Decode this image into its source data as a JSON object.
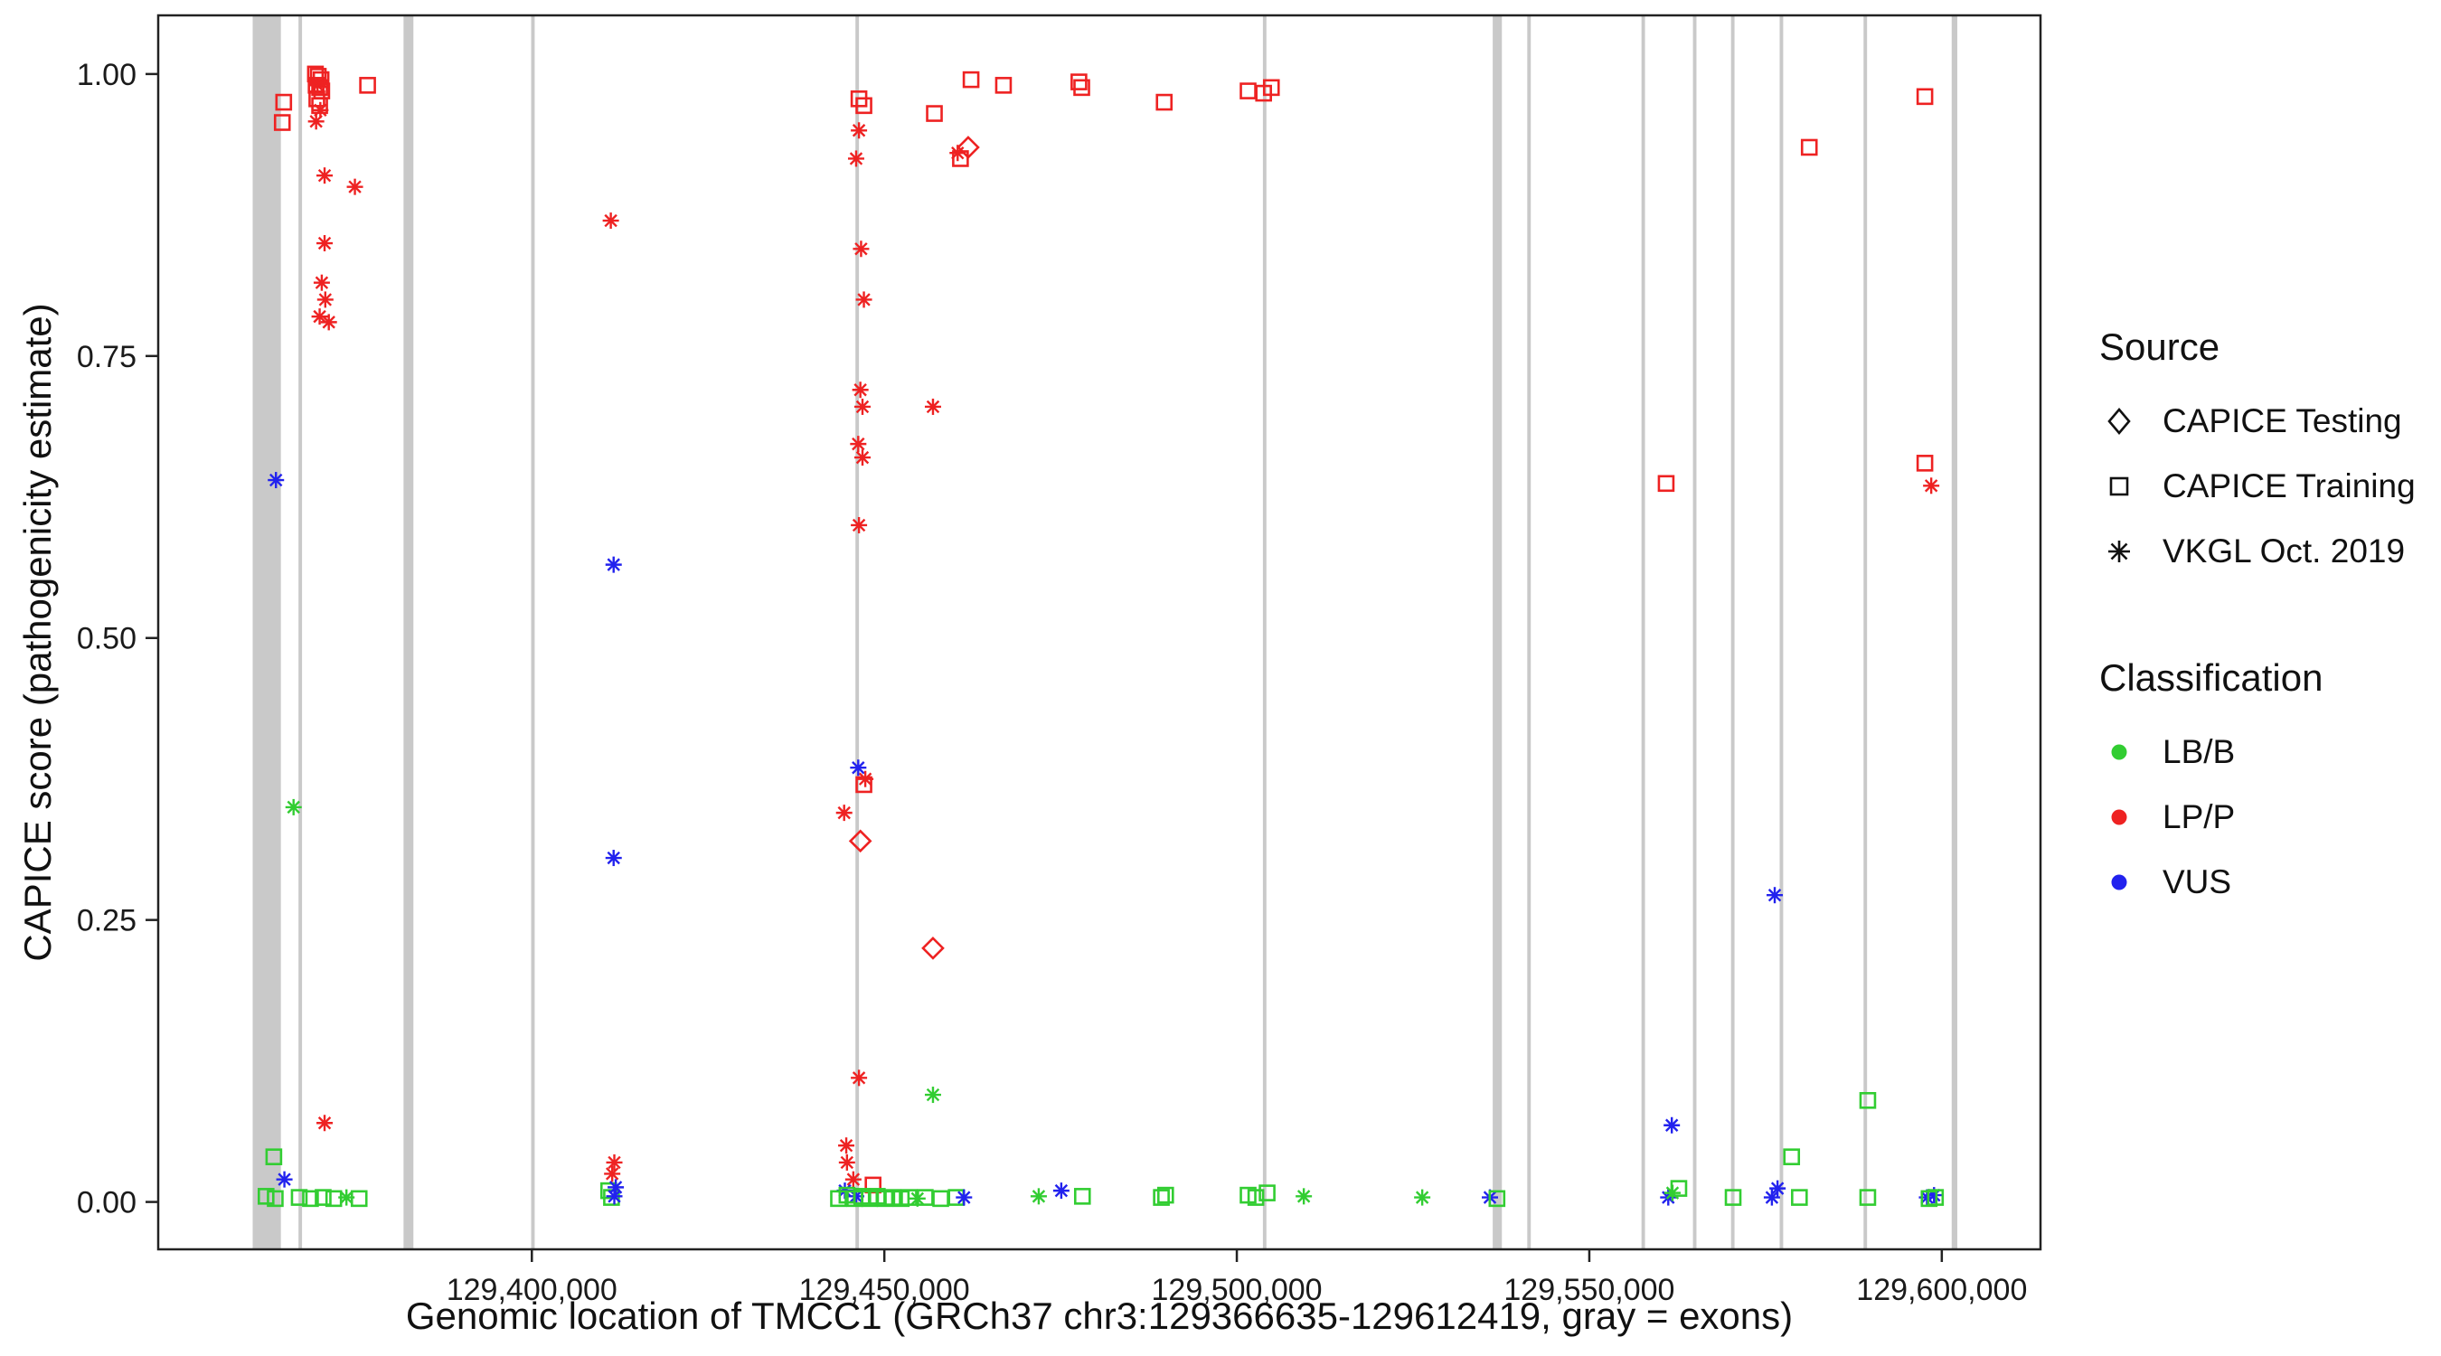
{
  "figure": {
    "background": "#ffffff",
    "panel_border_color": "#222222"
  },
  "legend": {
    "source": {
      "title": "Source",
      "items": [
        {
          "label": "CAPICE Testing",
          "shape": "diamond"
        },
        {
          "label": "CAPICE Training",
          "shape": "square"
        },
        {
          "label": "VKGL Oct. 2019",
          "shape": "asterisk"
        }
      ]
    },
    "classification": {
      "title": "Classification",
      "items": [
        {
          "label": "LB/B",
          "color": "#32cd32"
        },
        {
          "label": "LP/P",
          "color": "#ee2222"
        },
        {
          "label": "VUS",
          "color": "#2222ee"
        }
      ]
    }
  },
  "chart_data": {
    "type": "scatter",
    "title": "",
    "xlabel": "Genomic location of TMCC1 (GRCh37 chr3:129366635-129612419, gray = exons)",
    "ylabel": "CAPICE score (pathogenicity estimate)",
    "x_domain": [
      129347000,
      129614000
    ],
    "y_domain": [
      -0.042,
      1.052
    ],
    "x_ticks": [
      {
        "value": 129400000,
        "label": "129,400,000"
      },
      {
        "value": 129450000,
        "label": "129,450,000"
      },
      {
        "value": 129500000,
        "label": "129,500,000"
      },
      {
        "value": 129550000,
        "label": "129,550,000"
      },
      {
        "value": 129600000,
        "label": "129,600,000"
      }
    ],
    "y_ticks": [
      {
        "value": 0.0,
        "label": "0.00"
      },
      {
        "value": 0.25,
        "label": "0.25"
      },
      {
        "value": 0.5,
        "label": "0.50"
      },
      {
        "value": 0.75,
        "label": "0.75"
      },
      {
        "value": 1.0,
        "label": "1.00"
      }
    ],
    "grid": false,
    "legend_position": "right",
    "exon_color": "#c9c9c9",
    "exons": [
      [
        129360400,
        129364400
      ],
      [
        129366900,
        129367400
      ],
      [
        129381800,
        129383200
      ],
      [
        129399900,
        129400400
      ],
      [
        129445900,
        129446400
      ],
      [
        129503700,
        129504200
      ],
      [
        129536300,
        129537600
      ],
      [
        129541200,
        129541700
      ],
      [
        129557400,
        129557900
      ],
      [
        129564700,
        129565200
      ],
      [
        129570100,
        129570600
      ],
      [
        129577000,
        129577500
      ],
      [
        129588900,
        129589400
      ],
      [
        129601400,
        129602200
      ]
    ],
    "shape_source_map": {
      "diamond": "CAPICE Testing",
      "square": "CAPICE Training",
      "asterisk": "VKGL Oct. 2019"
    },
    "class_colors": {
      "LB/B": "#32cd32",
      "LP/P": "#ee2222",
      "VUS": "#2222ee"
    },
    "points": [
      [
        129363700,
        0.64,
        "asterisk",
        "VUS"
      ],
      [
        129364800,
        0.975,
        "square",
        "LP/P"
      ],
      [
        129364600,
        0.957,
        "square",
        "LP/P"
      ],
      [
        129369300,
        1.0,
        "square",
        "LP/P"
      ],
      [
        129369700,
        0.998,
        "square",
        "LP/P"
      ],
      [
        129370100,
        0.995,
        "square",
        "LP/P"
      ],
      [
        129369400,
        0.99,
        "square",
        "LP/P"
      ],
      [
        129369900,
        0.988,
        "square",
        "LP/P"
      ],
      [
        129370200,
        0.985,
        "square",
        "LP/P"
      ],
      [
        129369500,
        0.978,
        "square",
        "LP/P"
      ],
      [
        129369900,
        0.972,
        "square",
        "LP/P"
      ],
      [
        129369600,
        0.99,
        "asterisk",
        "LP/P"
      ],
      [
        129370000,
        0.968,
        "asterisk",
        "LP/P"
      ],
      [
        129369400,
        0.958,
        "asterisk",
        "LP/P"
      ],
      [
        129376700,
        0.99,
        "square",
        "LP/P"
      ],
      [
        129370600,
        0.91,
        "asterisk",
        "LP/P"
      ],
      [
        129374900,
        0.9,
        "asterisk",
        "LP/P"
      ],
      [
        129370600,
        0.85,
        "asterisk",
        "LP/P"
      ],
      [
        129370200,
        0.815,
        "asterisk",
        "LP/P"
      ],
      [
        129370700,
        0.8,
        "asterisk",
        "LP/P"
      ],
      [
        129369900,
        0.785,
        "asterisk",
        "LP/P"
      ],
      [
        129371200,
        0.78,
        "asterisk",
        "LP/P"
      ],
      [
        129366200,
        0.35,
        "asterisk",
        "LB/B"
      ],
      [
        129370600,
        0.07,
        "asterisk",
        "LP/P"
      ],
      [
        129364900,
        0.02,
        "asterisk",
        "VUS"
      ],
      [
        129363400,
        0.04,
        "square",
        "LB/B"
      ],
      [
        129362300,
        0.005,
        "square",
        "LB/B"
      ],
      [
        129363600,
        0.003,
        "square",
        "LB/B"
      ],
      [
        129367000,
        0.004,
        "square",
        "LB/B"
      ],
      [
        129368600,
        0.003,
        "square",
        "LB/B"
      ],
      [
        129370400,
        0.004,
        "square",
        "LB/B"
      ],
      [
        129371900,
        0.003,
        "square",
        "LB/B"
      ],
      [
        129373700,
        0.004,
        "asterisk",
        "LB/B"
      ],
      [
        129375500,
        0.003,
        "square",
        "LB/B"
      ],
      [
        129411200,
        0.87,
        "asterisk",
        "LP/P"
      ],
      [
        129411600,
        0.565,
        "asterisk",
        "VUS"
      ],
      [
        129411600,
        0.305,
        "asterisk",
        "VUS"
      ],
      [
        129411700,
        0.035,
        "asterisk",
        "LP/P"
      ],
      [
        129411400,
        0.025,
        "asterisk",
        "LP/P"
      ],
      [
        129410900,
        0.01,
        "square",
        "LB/B"
      ],
      [
        129411300,
        0.004,
        "square",
        "LB/B"
      ],
      [
        129411700,
        0.005,
        "asterisk",
        "VUS"
      ],
      [
        129411900,
        0.013,
        "asterisk",
        "VUS"
      ],
      [
        129446400,
        0.978,
        "square",
        "LP/P"
      ],
      [
        129447100,
        0.972,
        "square",
        "LP/P"
      ],
      [
        129446400,
        0.95,
        "asterisk",
        "LP/P"
      ],
      [
        129446000,
        0.925,
        "asterisk",
        "LP/P"
      ],
      [
        129446700,
        0.845,
        "asterisk",
        "LP/P"
      ],
      [
        129447100,
        0.8,
        "asterisk",
        "LP/P"
      ],
      [
        129446600,
        0.72,
        "asterisk",
        "LP/P"
      ],
      [
        129446900,
        0.705,
        "asterisk",
        "LP/P"
      ],
      [
        129446300,
        0.672,
        "asterisk",
        "LP/P"
      ],
      [
        129446900,
        0.66,
        "asterisk",
        "LP/P"
      ],
      [
        129446400,
        0.6,
        "asterisk",
        "LP/P"
      ],
      [
        129456900,
        0.705,
        "asterisk",
        "LP/P"
      ],
      [
        129446300,
        0.385,
        "asterisk",
        "VUS"
      ],
      [
        129447300,
        0.375,
        "asterisk",
        "LP/P"
      ],
      [
        129447100,
        0.37,
        "square",
        "LP/P"
      ],
      [
        129444300,
        0.345,
        "asterisk",
        "LP/P"
      ],
      [
        129446600,
        0.32,
        "diamond",
        "LP/P"
      ],
      [
        129456900,
        0.225,
        "diamond",
        "LP/P"
      ],
      [
        129446400,
        0.11,
        "asterisk",
        "LP/P"
      ],
      [
        129456900,
        0.095,
        "asterisk",
        "LB/B"
      ],
      [
        129444600,
        0.05,
        "asterisk",
        "LP/P"
      ],
      [
        129444700,
        0.035,
        "asterisk",
        "LP/P"
      ],
      [
        129445600,
        0.02,
        "asterisk",
        "LP/P"
      ],
      [
        129448400,
        0.015,
        "square",
        "LP/P"
      ],
      [
        129444400,
        0.01,
        "asterisk",
        "VUS"
      ],
      [
        129446000,
        0.005,
        "asterisk",
        "VUS"
      ],
      [
        129443500,
        0.003,
        "square",
        "LB/B"
      ],
      [
        129444700,
        0.006,
        "square",
        "LB/B"
      ],
      [
        129445800,
        0.003,
        "square",
        "LB/B"
      ],
      [
        129446800,
        0.005,
        "square",
        "LB/B"
      ],
      [
        129447900,
        0.003,
        "square",
        "LB/B"
      ],
      [
        129449000,
        0.005,
        "square",
        "LB/B"
      ],
      [
        129450100,
        0.003,
        "square",
        "LB/B"
      ],
      [
        129451200,
        0.004,
        "square",
        "LB/B"
      ],
      [
        129452400,
        0.003,
        "square",
        "LB/B"
      ],
      [
        129453500,
        0.004,
        "square",
        "LB/B"
      ],
      [
        129454700,
        0.003,
        "asterisk",
        "LB/B"
      ],
      [
        129455800,
        0.004,
        "square",
        "LB/B"
      ],
      [
        129458000,
        0.003,
        "square",
        "LB/B"
      ],
      [
        129460200,
        0.004,
        "square",
        "LB/B"
      ],
      [
        129461300,
        0.004,
        "asterisk",
        "VUS"
      ],
      [
        129457100,
        0.965,
        "square",
        "LP/P"
      ],
      [
        129460400,
        0.93,
        "asterisk",
        "LP/P"
      ],
      [
        129461900,
        0.935,
        "diamond",
        "LP/P"
      ],
      [
        129460800,
        0.925,
        "square",
        "LP/P"
      ],
      [
        129462300,
        0.995,
        "square",
        "LP/P"
      ],
      [
        129466900,
        0.99,
        "square",
        "LP/P"
      ],
      [
        129477600,
        0.993,
        "square",
        "LP/P"
      ],
      [
        129478000,
        0.988,
        "square",
        "LP/P"
      ],
      [
        129489700,
        0.975,
        "square",
        "LP/P"
      ],
      [
        129501600,
        0.985,
        "square",
        "LP/P"
      ],
      [
        129503800,
        0.983,
        "square",
        "LP/P"
      ],
      [
        129504900,
        0.988,
        "square",
        "LP/P"
      ],
      [
        129471900,
        0.005,
        "asterisk",
        "LB/B"
      ],
      [
        129475100,
        0.01,
        "asterisk",
        "VUS"
      ],
      [
        129478100,
        0.005,
        "square",
        "LB/B"
      ],
      [
        129489300,
        0.004,
        "square",
        "LB/B"
      ],
      [
        129489900,
        0.006,
        "square",
        "LB/B"
      ],
      [
        129501600,
        0.006,
        "square",
        "LB/B"
      ],
      [
        129502700,
        0.004,
        "square",
        "LB/B"
      ],
      [
        129504300,
        0.008,
        "square",
        "LB/B"
      ],
      [
        129509500,
        0.005,
        "asterisk",
        "LB/B"
      ],
      [
        129526300,
        0.004,
        "asterisk",
        "LB/B"
      ],
      [
        129535900,
        0.004,
        "asterisk",
        "VUS"
      ],
      [
        129536900,
        0.003,
        "square",
        "LB/B"
      ],
      [
        129560900,
        0.637,
        "square",
        "LP/P"
      ],
      [
        129581200,
        0.935,
        "square",
        "LP/P"
      ],
      [
        129597600,
        0.98,
        "square",
        "LP/P"
      ],
      [
        129597600,
        0.655,
        "square",
        "LP/P"
      ],
      [
        129598500,
        0.635,
        "asterisk",
        "LP/P"
      ],
      [
        129576300,
        0.272,
        "asterisk",
        "VUS"
      ],
      [
        129561700,
        0.068,
        "asterisk",
        "VUS"
      ],
      [
        129589500,
        0.09,
        "square",
        "LB/B"
      ],
      [
        129578700,
        0.04,
        "square",
        "LB/B"
      ],
      [
        129561200,
        0.004,
        "asterisk",
        "VUS"
      ],
      [
        129561800,
        0.008,
        "asterisk",
        "LB/B"
      ],
      [
        129562700,
        0.012,
        "square",
        "LB/B"
      ],
      [
        129570400,
        0.004,
        "square",
        "LB/B"
      ],
      [
        129579800,
        0.004,
        "square",
        "LB/B"
      ],
      [
        129575900,
        0.004,
        "asterisk",
        "VUS"
      ],
      [
        129576700,
        0.012,
        "asterisk",
        "VUS"
      ],
      [
        129589500,
        0.004,
        "square",
        "LB/B"
      ],
      [
        129597900,
        0.004,
        "asterisk",
        "VUS"
      ],
      [
        129598900,
        0.006,
        "asterisk",
        "VUS"
      ],
      [
        129598200,
        0.003,
        "square",
        "LB/B"
      ],
      [
        129599100,
        0.004,
        "square",
        "LB/B"
      ]
    ]
  }
}
